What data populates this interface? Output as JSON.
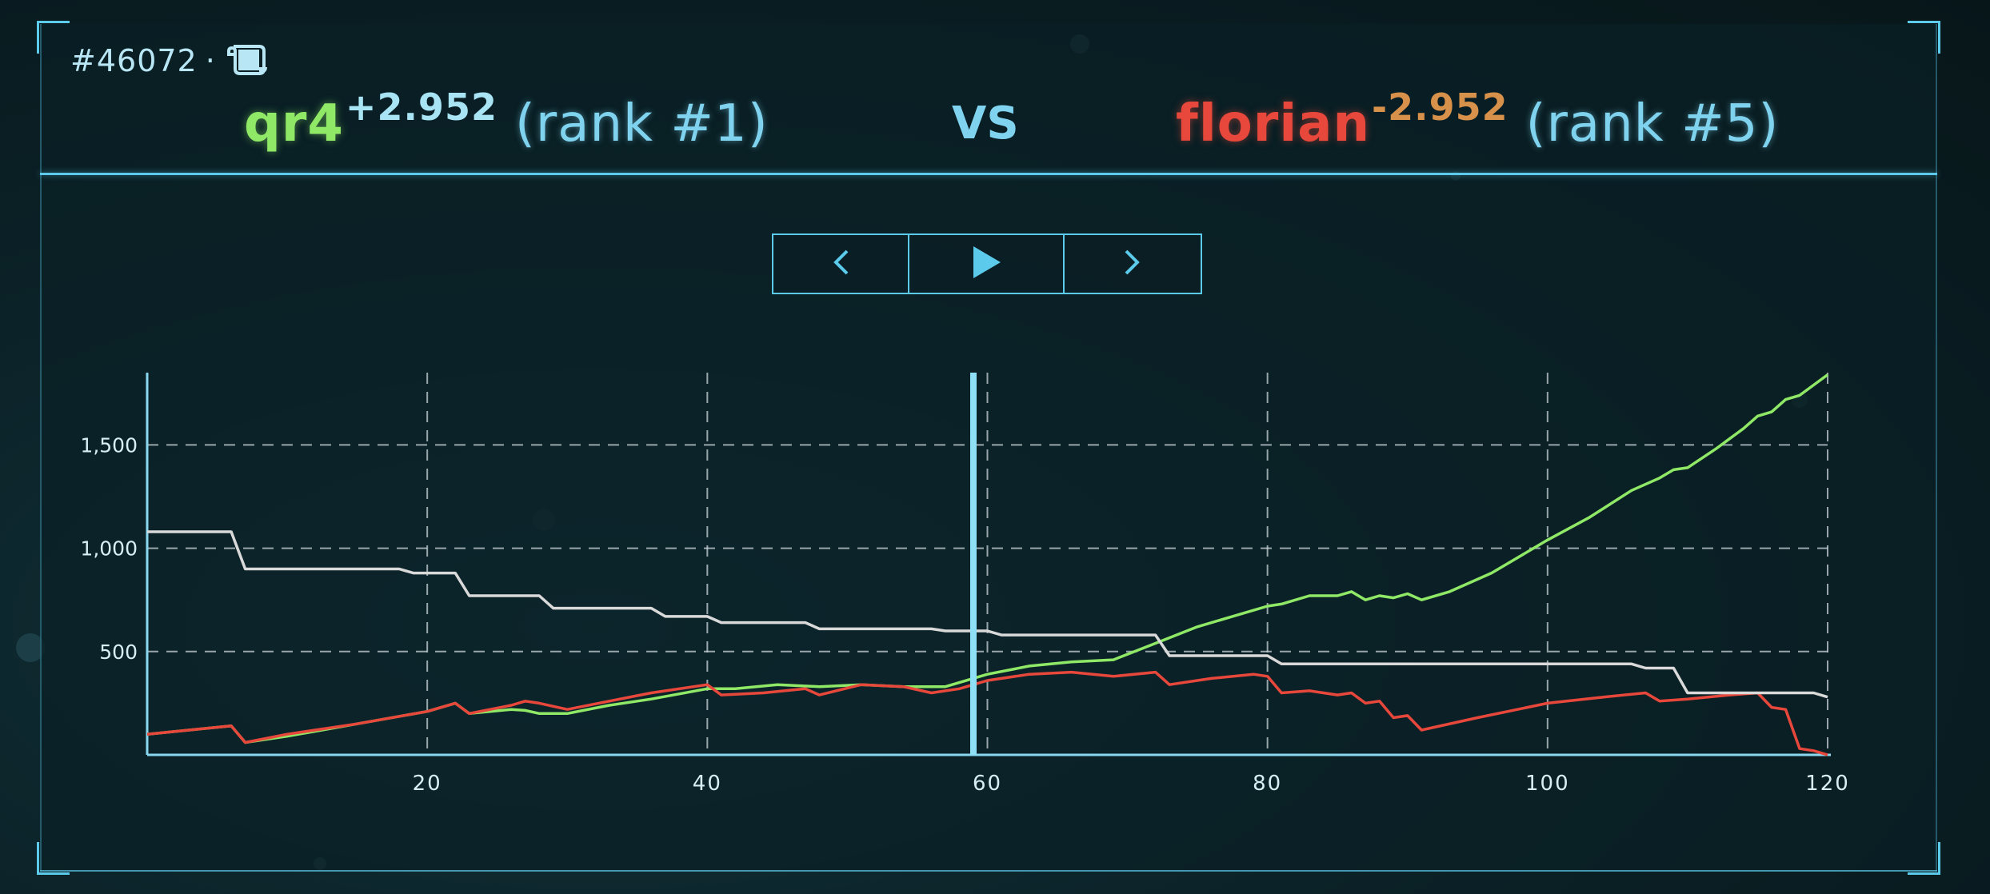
{
  "game": {
    "id": "#46072",
    "separator": "·",
    "replay_icon": "scroll-icon"
  },
  "players": [
    {
      "name": "qr4",
      "delta": "+2.952",
      "rank": "(rank #1)",
      "color": "#8fe866"
    },
    {
      "name": "florian",
      "delta": "-2.952",
      "rank": "(rank #5)",
      "color": "#e8473b"
    }
  ],
  "vs_label": "VS",
  "controls": {
    "prev_icon": "chevron-left-icon",
    "play_icon": "play-icon",
    "next_icon": "chevron-right-icon"
  },
  "colors": {
    "accent": "#5ccbeb",
    "green": "#8fe866",
    "red": "#e8473b",
    "white_series": "#d9d9d9",
    "grid": "#c9d4d8"
  },
  "chart_data": {
    "type": "line",
    "xlim": [
      0,
      120
    ],
    "ylim": [
      0,
      1850
    ],
    "x_ticks": [
      20,
      40,
      60,
      80,
      100,
      120
    ],
    "y_ticks": [
      500,
      1000,
      1500
    ],
    "x_tick_labels": [
      "20",
      "40",
      "60",
      "80",
      "100",
      "120"
    ],
    "y_tick_labels": [
      "500",
      "1,000",
      "1,500"
    ],
    "grid": true,
    "cursor_x": 59,
    "series": [
      {
        "color": "#8fe866",
        "points": [
          [
            0,
            100
          ],
          [
            6,
            140
          ],
          [
            7,
            60
          ],
          [
            10,
            90
          ],
          [
            15,
            150
          ],
          [
            20,
            210
          ],
          [
            22,
            250
          ],
          [
            23,
            200
          ],
          [
            26,
            220
          ],
          [
            27,
            215
          ],
          [
            28,
            200
          ],
          [
            30,
            200
          ],
          [
            33,
            240
          ],
          [
            36,
            270
          ],
          [
            40,
            320
          ],
          [
            42,
            320
          ],
          [
            45,
            340
          ],
          [
            48,
            330
          ],
          [
            51,
            340
          ],
          [
            54,
            330
          ],
          [
            57,
            330
          ],
          [
            60,
            390
          ],
          [
            63,
            430
          ],
          [
            66,
            450
          ],
          [
            69,
            460
          ],
          [
            72,
            540
          ],
          [
            75,
            620
          ],
          [
            78,
            680
          ],
          [
            80,
            720
          ],
          [
            81,
            730
          ],
          [
            83,
            770
          ],
          [
            85,
            770
          ],
          [
            86,
            790
          ],
          [
            87,
            750
          ],
          [
            88,
            770
          ],
          [
            89,
            760
          ],
          [
            90,
            780
          ],
          [
            91,
            750
          ],
          [
            93,
            790
          ],
          [
            96,
            880
          ],
          [
            100,
            1040
          ],
          [
            103,
            1150
          ],
          [
            106,
            1280
          ],
          [
            108,
            1340
          ],
          [
            109,
            1380
          ],
          [
            110,
            1390
          ],
          [
            112,
            1480
          ],
          [
            114,
            1580
          ],
          [
            115,
            1640
          ],
          [
            116,
            1660
          ],
          [
            117,
            1720
          ],
          [
            118,
            1740
          ],
          [
            120,
            1840
          ]
        ]
      },
      {
        "color": "#e8473b",
        "points": [
          [
            0,
            100
          ],
          [
            6,
            140
          ],
          [
            7,
            60
          ],
          [
            10,
            100
          ],
          [
            15,
            150
          ],
          [
            20,
            210
          ],
          [
            22,
            250
          ],
          [
            23,
            200
          ],
          [
            26,
            240
          ],
          [
            27,
            260
          ],
          [
            28,
            250
          ],
          [
            30,
            220
          ],
          [
            33,
            260
          ],
          [
            36,
            300
          ],
          [
            40,
            340
          ],
          [
            41,
            290
          ],
          [
            44,
            300
          ],
          [
            47,
            320
          ],
          [
            48,
            290
          ],
          [
            51,
            340
          ],
          [
            54,
            330
          ],
          [
            56,
            300
          ],
          [
            58,
            320
          ],
          [
            60,
            360
          ],
          [
            63,
            390
          ],
          [
            66,
            400
          ],
          [
            69,
            380
          ],
          [
            72,
            400
          ],
          [
            73,
            340
          ],
          [
            76,
            370
          ],
          [
            79,
            390
          ],
          [
            80,
            380
          ],
          [
            81,
            300
          ],
          [
            83,
            310
          ],
          [
            85,
            290
          ],
          [
            86,
            300
          ],
          [
            87,
            250
          ],
          [
            88,
            260
          ],
          [
            89,
            180
          ],
          [
            90,
            190
          ],
          [
            91,
            120
          ],
          [
            95,
            180
          ],
          [
            100,
            250
          ],
          [
            104,
            280
          ],
          [
            107,
            300
          ],
          [
            108,
            260
          ],
          [
            110,
            270
          ],
          [
            113,
            290
          ],
          [
            115,
            300
          ],
          [
            116,
            230
          ],
          [
            117,
            220
          ],
          [
            118,
            30
          ],
          [
            119,
            20
          ],
          [
            120,
            0
          ]
        ]
      },
      {
        "color": "#d9d9d9",
        "points": [
          [
            0,
            1080
          ],
          [
            6,
            1080
          ],
          [
            7,
            900
          ],
          [
            18,
            900
          ],
          [
            19,
            880
          ],
          [
            22,
            880
          ],
          [
            23,
            770
          ],
          [
            28,
            770
          ],
          [
            29,
            710
          ],
          [
            36,
            710
          ],
          [
            37,
            670
          ],
          [
            40,
            670
          ],
          [
            41,
            640
          ],
          [
            47,
            640
          ],
          [
            48,
            610
          ],
          [
            56,
            610
          ],
          [
            57,
            600
          ],
          [
            60,
            600
          ],
          [
            61,
            580
          ],
          [
            72,
            580
          ],
          [
            73,
            480
          ],
          [
            80,
            480
          ],
          [
            81,
            440
          ],
          [
            106,
            440
          ],
          [
            107,
            420
          ],
          [
            109,
            420
          ],
          [
            110,
            300
          ],
          [
            119,
            300
          ],
          [
            120,
            280
          ]
        ]
      }
    ]
  }
}
